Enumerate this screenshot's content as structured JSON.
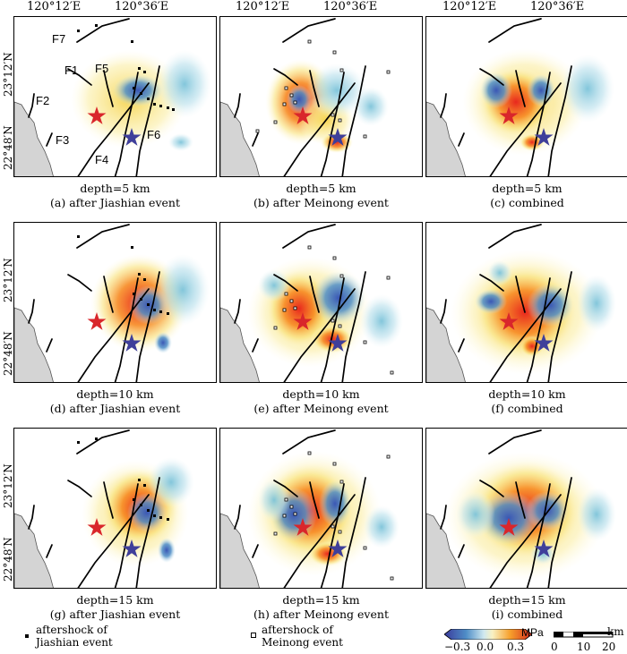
{
  "lon_labels": [
    "120°12′E",
    "120°36′E"
  ],
  "lat_labels": [
    "23°12′N",
    "22°48′N"
  ],
  "fault_labels": [
    "F7",
    "F1",
    "F5",
    "F2",
    "F3",
    "F6",
    "F4"
  ],
  "panels": [
    {
      "depth": "depth=5 km",
      "title": "(a) after Jiashian event"
    },
    {
      "depth": "depth=5 km",
      "title": "(b) after Meinong event"
    },
    {
      "depth": "depth=5 km",
      "title": "(c) combined"
    },
    {
      "depth": "depth=10 km",
      "title": "(d) after Jiashian event"
    },
    {
      "depth": "depth=10 km",
      "title": "(e) after Meinong event"
    },
    {
      "depth": "depth=10 km",
      "title": "(f) combined"
    },
    {
      "depth": "depth=15 km",
      "title": "(g) after Jiashian event"
    },
    {
      "depth": "depth=15 km",
      "title": "(h) after Meinong event"
    },
    {
      "depth": "depth=15 km",
      "title": "(i) combined"
    }
  ],
  "legend": {
    "jiashian_line1": "aftershock of",
    "jiashian_line2": "Jiashian event",
    "meinong_line1": "aftershock of",
    "meinong_line2": "Meinong event",
    "colorbar_unit": "MPa",
    "colorbar_ticks": [
      "−0.3",
      "0.0",
      "0.3"
    ],
    "scale_unit": "km",
    "scale_ticks": [
      "0",
      "10",
      "20"
    ]
  },
  "colors": {
    "positive": "#e8281e",
    "negative": "#3a57b5",
    "land": "#d4d4d4",
    "star_red": "#d9262b",
    "star_blue": "#3f3f9a"
  }
}
